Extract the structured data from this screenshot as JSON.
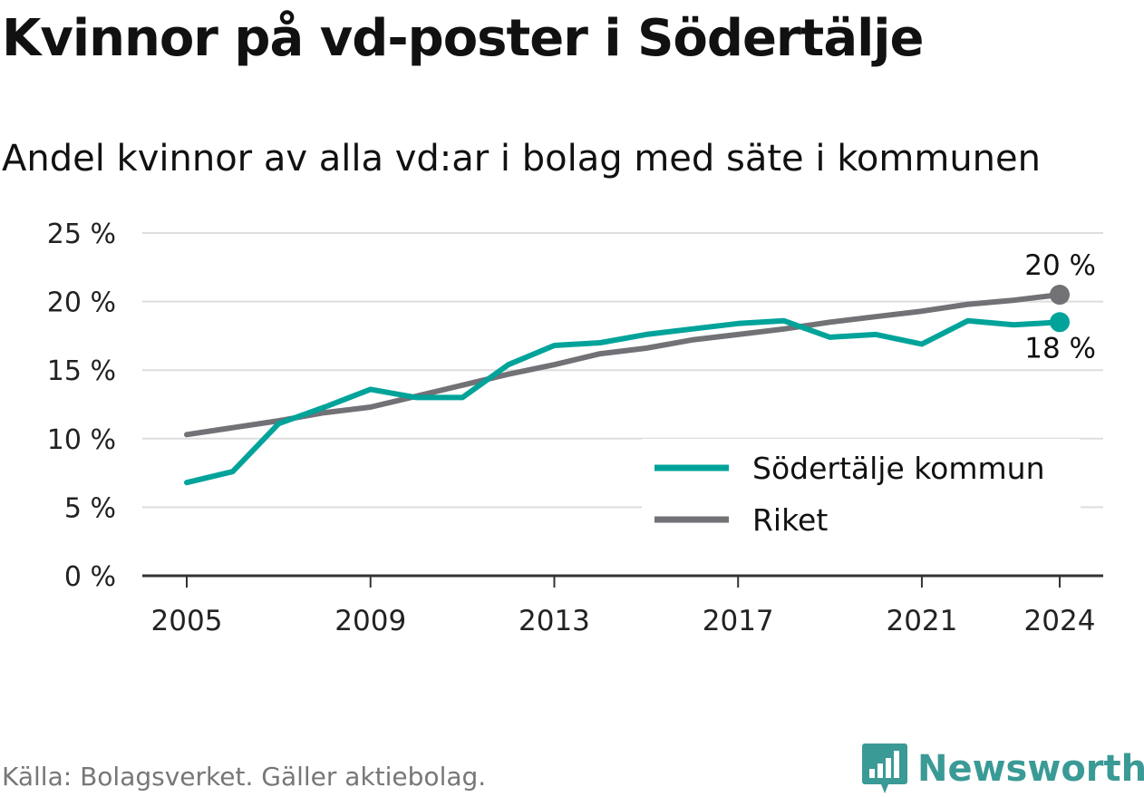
{
  "title": "Kvinnor på vd-poster i Södertälje",
  "subtitle": "Andel kvinnor av alla vd:ar i bolag med säte i kommunen",
  "source": "Källa: Bolagsverket. Gäller aktiebolag.",
  "logo": {
    "text": "Newsworthy",
    "icon": "bar-chart-badge-icon"
  },
  "colors": {
    "sodertalje": "#00a39a",
    "riket": "#717176",
    "grid": "#dddddd",
    "axis": "#333333"
  },
  "chart_data": {
    "type": "line",
    "title": "Kvinnor på vd-poster i Södertälje",
    "subtitle": "Andel kvinnor av alla vd:ar i bolag med säte i kommunen",
    "x": [
      2005,
      2006,
      2007,
      2008,
      2009,
      2010,
      2011,
      2012,
      2013,
      2014,
      2015,
      2016,
      2017,
      2018,
      2019,
      2020,
      2021,
      2022,
      2023,
      2024
    ],
    "x_ticks": [
      "2005",
      "2009",
      "2013",
      "2017",
      "2021",
      "2024"
    ],
    "y_ticks": [
      "0 %",
      "5 %",
      "10 %",
      "15 %",
      "20 %",
      "25 %"
    ],
    "ylim": [
      0,
      25
    ],
    "grid": true,
    "legend_position": "bottom-right",
    "series": [
      {
        "name": "Södertälje kommun",
        "color": "#00a39a",
        "values": [
          6.8,
          7.6,
          11.1,
          12.3,
          13.6,
          13.0,
          13.0,
          15.4,
          16.8,
          17.0,
          17.6,
          18.0,
          18.4,
          18.6,
          17.4,
          17.6,
          16.9,
          18.6,
          18.3,
          18.5
        ],
        "end_label": "18 %"
      },
      {
        "name": "Riket",
        "color": "#717176",
        "values": [
          10.3,
          10.8,
          11.3,
          11.9,
          12.3,
          13.1,
          13.9,
          14.7,
          15.4,
          16.2,
          16.6,
          17.2,
          17.6,
          18.0,
          18.5,
          18.9,
          19.3,
          19.8,
          20.1,
          20.5
        ],
        "end_label": "20 %"
      }
    ]
  }
}
